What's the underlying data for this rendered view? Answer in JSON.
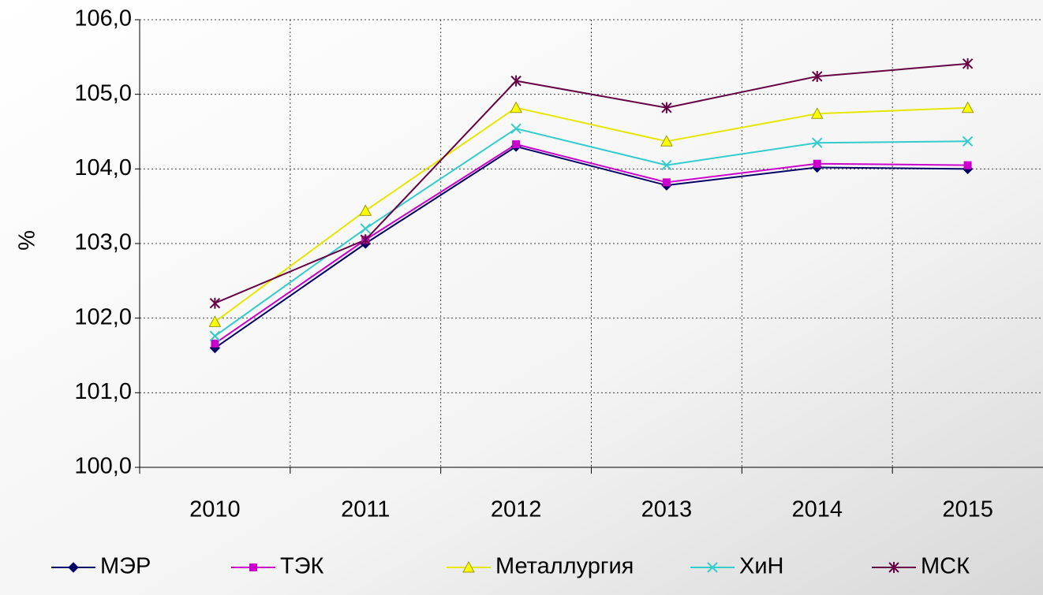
{
  "chart_data": {
    "type": "line",
    "y_label": "%",
    "categories": [
      "2010",
      "2011",
      "2012",
      "2013",
      "2014",
      "2015"
    ],
    "series": [
      {
        "name": "МЭР",
        "color": "#000066",
        "marker": "diamond",
        "values": [
          101.6,
          103.0,
          104.3,
          103.78,
          104.02,
          104.0
        ]
      },
      {
        "name": "ТЭК",
        "color": "#cc00cc",
        "marker": "square",
        "values": [
          101.66,
          103.05,
          104.33,
          103.82,
          104.07,
          104.05
        ]
      },
      {
        "name": "Металлургия",
        "color": "#e6e600",
        "marker": "triangle",
        "values": [
          101.95,
          103.44,
          104.82,
          104.37,
          104.74,
          104.82
        ]
      },
      {
        "name": "ХиН",
        "color": "#33cccc",
        "marker": "x",
        "values": [
          101.76,
          103.2,
          104.54,
          104.05,
          104.35,
          104.37
        ]
      },
      {
        "name": "МСК",
        "color": "#660044",
        "marker": "star",
        "values": [
          102.2,
          103.05,
          105.18,
          104.82,
          105.24,
          105.41
        ]
      }
    ],
    "ylim": [
      100,
      106
    ],
    "yticks": [
      {
        "value": 100,
        "label": "100,0"
      },
      {
        "value": 101,
        "label": "101,0"
      },
      {
        "value": 102,
        "label": "102,0"
      },
      {
        "value": 103,
        "label": "103,0"
      },
      {
        "value": 104,
        "label": "104,0"
      },
      {
        "value": 105,
        "label": "105,0"
      },
      {
        "value": 106,
        "label": "106,0"
      }
    ],
    "grid": true,
    "legend": "bottom"
  }
}
